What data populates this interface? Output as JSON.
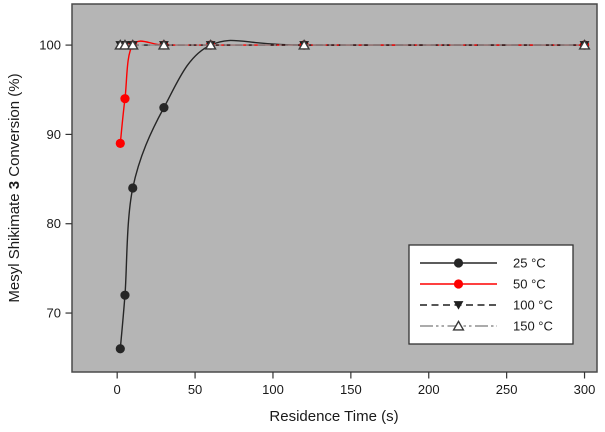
{
  "figure": {
    "background": "#ffffff",
    "plot_background": "#b5b5b5",
    "border_color": "#4a4a4a",
    "text_color": "#1a1a1a"
  },
  "chart_data": {
    "type": "line",
    "title": "",
    "xlabel": "Residence Time (s)",
    "ylabel": "Mesyl Shikimate 3 Conversion (%)",
    "ylabel_parts": {
      "pre": "Mesyl Shikimate ",
      "bold": "3",
      "post": " Conversion (%)"
    },
    "x": [
      2,
      5,
      10,
      30,
      60,
      120,
      300
    ],
    "series": [
      {
        "name": "25 °C",
        "values": [
          66,
          72,
          84,
          93,
          100,
          100,
          100
        ],
        "color": "#262626",
        "marker": "circle-filled",
        "line": "solid"
      },
      {
        "name": "50 °C",
        "values": [
          89,
          94,
          100,
          100,
          100,
          100,
          100
        ],
        "color": "#fe0000",
        "marker": "circle-filled",
        "line": "solid"
      },
      {
        "name": "100 °C",
        "values": [
          100,
          100,
          100,
          100,
          100,
          100,
          100
        ],
        "color": "#1f1f1f",
        "marker": "triangle-down-filled",
        "line": "dashed"
      },
      {
        "name": "150 °C",
        "values": [
          100,
          100,
          100,
          100,
          100,
          100,
          100
        ],
        "color": "#8f8f8f",
        "marker": "triangle-up-open",
        "line": "dash-dot-dot"
      }
    ],
    "open_marker_fill": "#ffffff",
    "open_marker_stroke": "#3a3a3a",
    "xticks": [
      0,
      50,
      100,
      150,
      200,
      250,
      300
    ],
    "yticks": [
      70,
      80,
      90,
      100
    ],
    "xlim": [
      -29,
      308
    ],
    "ylim": [
      63.4,
      104.6
    ],
    "grid": false,
    "legend_position": "lower right"
  }
}
